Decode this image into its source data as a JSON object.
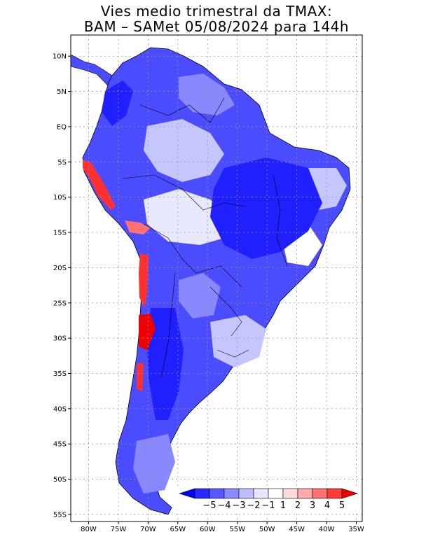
{
  "title": {
    "line1": "Vies medio trimestral da TMAX:",
    "line2": "BAM – SAMet 05/08/2024  para 144h"
  },
  "map": {
    "lon_range": [
      -83,
      -34
    ],
    "lat_range": [
      -56,
      13
    ],
    "grid": true,
    "lat_ticks": [
      {
        "value": 10,
        "label": "10N"
      },
      {
        "value": 5,
        "label": "5N"
      },
      {
        "value": 0,
        "label": "EQ"
      },
      {
        "value": -5,
        "label": "5S"
      },
      {
        "value": -10,
        "label": "10S"
      },
      {
        "value": -15,
        "label": "15S"
      },
      {
        "value": -20,
        "label": "20S"
      },
      {
        "value": -25,
        "label": "25S"
      },
      {
        "value": -30,
        "label": "30S"
      },
      {
        "value": -35,
        "label": "35S"
      },
      {
        "value": -40,
        "label": "40S"
      },
      {
        "value": -45,
        "label": "45S"
      },
      {
        "value": -50,
        "label": "50S"
      },
      {
        "value": -55,
        "label": "55S"
      }
    ],
    "lon_ticks": [
      {
        "value": -80,
        "label": "80W"
      },
      {
        "value": -75,
        "label": "75W"
      },
      {
        "value": -70,
        "label": "70W"
      },
      {
        "value": -65,
        "label": "65W"
      },
      {
        "value": -60,
        "label": "60W"
      },
      {
        "value": -55,
        "label": "55W"
      },
      {
        "value": -50,
        "label": "50W"
      },
      {
        "value": -45,
        "label": "45W"
      },
      {
        "value": -40,
        "label": "40W"
      },
      {
        "value": -35,
        "label": "35W"
      }
    ]
  },
  "colorbar": {
    "labels": [
      "−5",
      "−4",
      "−3",
      "−2",
      "−1",
      "1",
      "2",
      "3",
      "4",
      "5"
    ],
    "colors": [
      "#0000ff",
      "#2a2aff",
      "#5757ff",
      "#8a8aff",
      "#bdbdff",
      "#e6e6ff",
      "#ffffff",
      "#ffdcdc",
      "#ffaaaa",
      "#ff7070",
      "#ff3a3a",
      "#ee0000"
    ]
  },
  "colors": {
    "strong_cold": "#1f1fff",
    "cold": "#4c4cff",
    "mild_cold": "#8888ff",
    "light_cold": "#c6c6ff",
    "warm": "#ff3030",
    "land_border": "#000000"
  }
}
